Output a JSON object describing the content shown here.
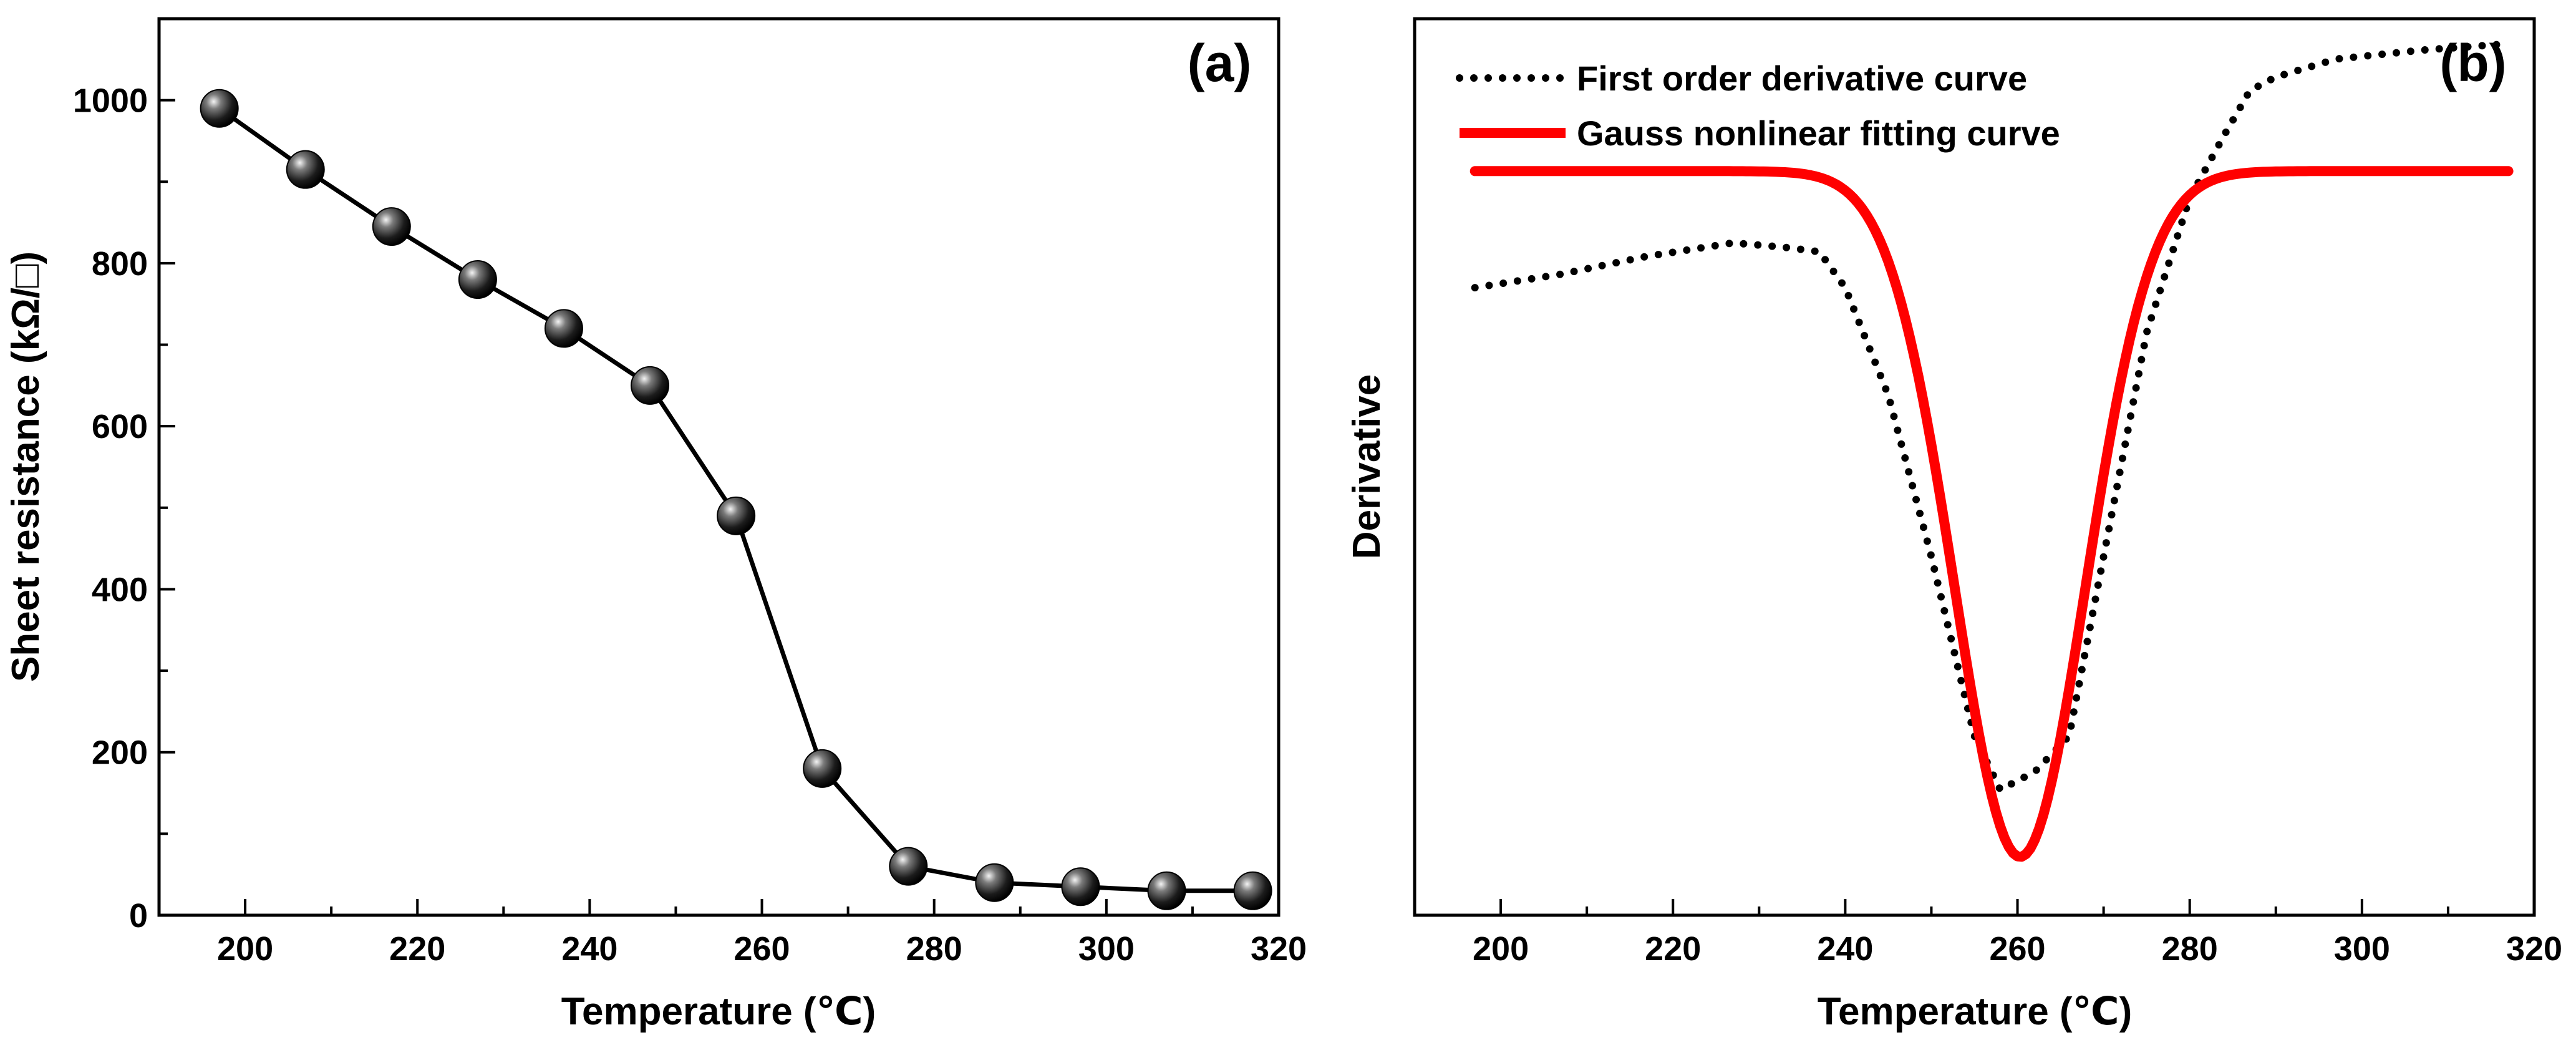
{
  "chart_data": [
    {
      "panel": "(a)",
      "type": "line",
      "marker": "sphere",
      "xlabel": "Temperature (℃)",
      "ylabel": "Sheet resistance (kΩ/□)",
      "xlim": [
        190,
        320
      ],
      "ylim": [
        0,
        1100
      ],
      "xticks": [
        200,
        220,
        240,
        260,
        280,
        300,
        320
      ],
      "yticks": [
        0,
        200,
        400,
        600,
        800,
        1000
      ],
      "xtick_labels": [
        "200",
        "220",
        "240",
        "260",
        "280",
        "300",
        "320"
      ],
      "ytick_labels": [
        "0",
        "200",
        "400",
        "600",
        "800",
        "1000"
      ],
      "series": [
        {
          "name": "Sheet resistance",
          "x": [
            197,
            207,
            217,
            227,
            237,
            247,
            257,
            267,
            277,
            287,
            297,
            307,
            317
          ],
          "y": [
            990,
            915,
            845,
            780,
            720,
            650,
            490,
            180,
            60,
            40,
            35,
            30,
            30
          ]
        }
      ]
    },
    {
      "panel": "(b)",
      "type": "line",
      "xlabel": "Temperature (℃)",
      "ylabel": "Derivative",
      "xlim": [
        190,
        320
      ],
      "ylim": [
        0,
        1
      ],
      "y_tick_labels_shown": false,
      "xticks": [
        200,
        220,
        240,
        260,
        280,
        300,
        320
      ],
      "xtick_labels": [
        "200",
        "220",
        "240",
        "260",
        "280",
        "300",
        "320"
      ],
      "legend_position": "top-left",
      "series": [
        {
          "name": "First order derivative curve",
          "style": "dotted",
          "color": "#000000",
          "x": [
            197,
            207,
            217,
            227,
            233,
            237,
            240,
            245,
            250,
            255,
            258,
            262,
            266,
            270,
            275,
            280,
            284,
            287,
            290,
            297,
            307,
            317
          ],
          "y": [
            0.7,
            0.715,
            0.735,
            0.75,
            0.745,
            0.74,
            0.7,
            0.58,
            0.4,
            0.2,
            0.14,
            0.16,
            0.2,
            0.4,
            0.65,
            0.8,
            0.87,
            0.92,
            0.935,
            0.955,
            0.965,
            0.972
          ]
        },
        {
          "name": "Gauss nonlinear fitting curve",
          "style": "solid",
          "color": "#ff0000",
          "model": "gaussian-dip",
          "baseline": 0.83,
          "depth": 0.765,
          "center": 260.3,
          "sigma": 7.6,
          "x_range": [
            197,
            317
          ]
        }
      ]
    }
  ]
}
